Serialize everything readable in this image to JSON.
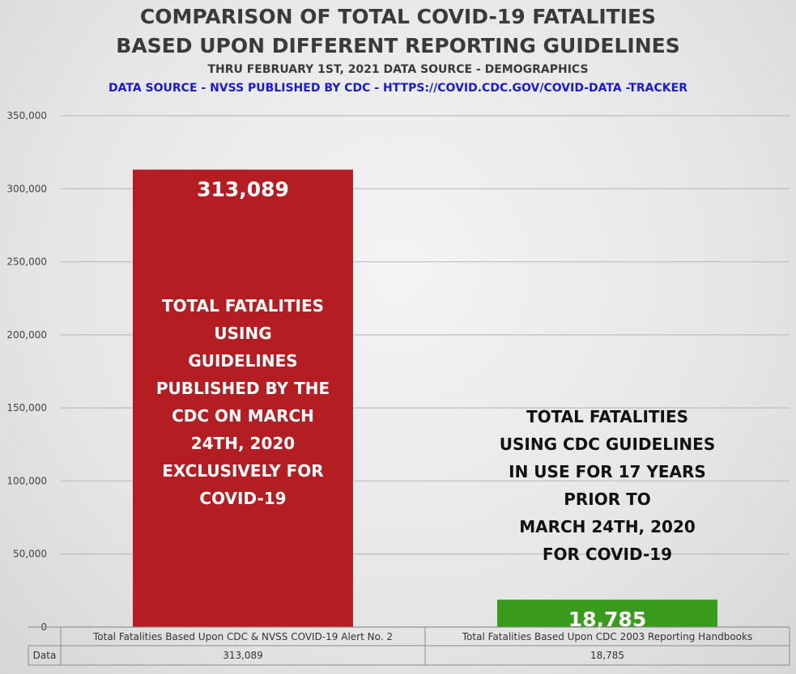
{
  "chart_data": {
    "type": "bar",
    "title": "COMPARISON OF TOTAL COVID-19 FATALITIES",
    "title_line2": "BASED UPON DIFFERENT REPORTING GUIDELINES",
    "subtitle": "THRU FEBRUARY 1ST, 2021 DATA SOURCE   - DEMOGRAPHICS",
    "source": "DATA SOURCE  - NVSS PUBLISHED BY CDC  - HTTPS://COVID.CDC.GOV/COVID-DATA -TRACKER",
    "categories": [
      "Total Fatalities Based Upon CDC & NVSS COVID-19 Alert No. 2",
      "Total Fatalities Based Upon CDC 2003 Reporting Handbooks"
    ],
    "values": [
      313089,
      18785
    ],
    "value_labels": [
      "313,089",
      "18,785"
    ],
    "bar_colors": [
      "#b41e22",
      "#3a9a1c"
    ],
    "ylim": [
      0,
      350000
    ],
    "yticks": [
      0,
      50000,
      100000,
      150000,
      200000,
      250000,
      300000,
      350000
    ],
    "ytick_labels": [
      "0",
      "50,000",
      "100,000",
      "150,000",
      "200,000",
      "250,000",
      "300,000",
      "350,000"
    ],
    "grid": true,
    "data_table": {
      "row_label": "Data",
      "values": [
        "313,089",
        "18,785"
      ]
    },
    "annotations": [
      {
        "lines": [
          "TOTAL FATALITIES",
          "USING",
          "GUIDELINES",
          "PUBLISHED BY THE",
          "CDC ON MARCH",
          "24TH, 2020",
          "EXCLUSIVELY FOR",
          "COVID-19"
        ],
        "color": "#ffffff"
      },
      {
        "lines": [
          "TOTAL FATALITIES",
          "USING CDC GUIDELINES",
          "IN USE FOR 17 YEARS",
          "PRIOR TO",
          "MARCH 24TH, 2020",
          "FOR COVID-19"
        ],
        "color": "#111111"
      }
    ]
  }
}
